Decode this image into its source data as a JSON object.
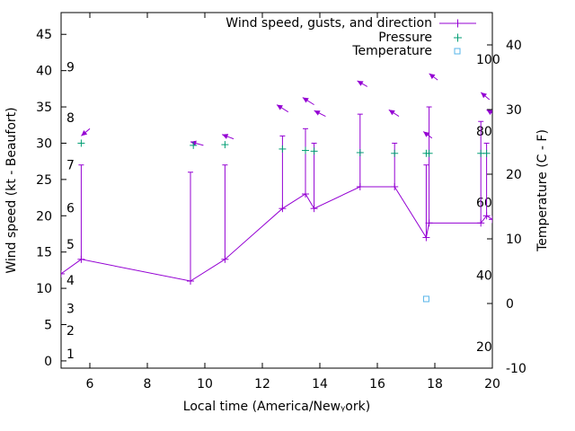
{
  "chart_data": {
    "type": "line",
    "xlabel": "Local time (America/Newᵧork)",
    "ylabel_left": "Wind speed (kt - Beaufort)",
    "ylabel_right": "Temperature (C - F)",
    "xlim": [
      5,
      20
    ],
    "ylim_left": [
      -1,
      48
    ],
    "ylim_right": [
      -10,
      45
    ],
    "x_ticks": [
      6,
      8,
      10,
      12,
      14,
      16,
      18,
      20
    ],
    "y_left_ticks": [
      0,
      5,
      10,
      15,
      20,
      25,
      30,
      35,
      40,
      45
    ],
    "y_right_ticks": [
      -10,
      0,
      10,
      20,
      30,
      40
    ],
    "beaufort_labels": [
      {
        "label": "1",
        "value": 1.0
      },
      {
        "label": "2",
        "value": 4.2
      },
      {
        "label": "3",
        "value": 7.2
      },
      {
        "label": "4",
        "value": 11.1
      },
      {
        "label": "5",
        "value": 16.1
      },
      {
        "label": "6",
        "value": 21.1
      },
      {
        "label": "7",
        "value": 27.0
      },
      {
        "label": "8",
        "value": 33.5
      },
      {
        "label": "9",
        "value": 40.5
      }
    ],
    "fahrenheit_labels": [
      {
        "label": "20",
        "celsius": -6.7
      },
      {
        "label": "40",
        "celsius": 4.4
      },
      {
        "label": "60",
        "celsius": 15.6
      },
      {
        "label": "80",
        "celsius": 26.7
      },
      {
        "label": "100",
        "celsius": 37.8
      }
    ],
    "legend": [
      {
        "label": "Wind speed, gusts, and direction",
        "color": "#9400d3"
      },
      {
        "label": "Pressure",
        "color": "#009e73"
      },
      {
        "label": "Temperature",
        "color": "#56b4e9"
      }
    ],
    "wind": {
      "color": "#9400d3",
      "x": [
        5.0,
        5.7,
        9.5,
        10.7,
        12.7,
        13.5,
        13.8,
        15.4,
        16.6,
        17.7,
        17.8,
        19.6,
        19.8,
        20.0
      ],
      "speed": [
        12.0,
        14.0,
        11.0,
        14.0,
        21.0,
        23.0,
        21.0,
        24.0,
        24.0,
        17.0,
        19.0,
        19.0,
        20.0,
        19.5
      ],
      "gust": [
        null,
        27.0,
        26.0,
        27.0,
        31.0,
        32.0,
        30.0,
        34.0,
        30.0,
        27.0,
        35.0,
        33.0,
        30.0,
        null
      ]
    },
    "wind_direction_arrows": [
      {
        "x": 5.7,
        "y": 31.0,
        "dx": 0.3,
        "dy": 1.0
      },
      {
        "x": 9.5,
        "y": 30.2,
        "dx": 0.45,
        "dy": -0.5
      },
      {
        "x": 10.6,
        "y": 31.2,
        "dx": 0.4,
        "dy": -0.6
      },
      {
        "x": 12.5,
        "y": 35.3,
        "dx": 0.4,
        "dy": -1.0
      },
      {
        "x": 13.4,
        "y": 36.3,
        "dx": 0.4,
        "dy": -1.0
      },
      {
        "x": 13.8,
        "y": 34.5,
        "dx": 0.4,
        "dy": -0.8
      },
      {
        "x": 15.3,
        "y": 38.6,
        "dx": 0.35,
        "dy": -0.8
      },
      {
        "x": 16.4,
        "y": 34.6,
        "dx": 0.35,
        "dy": -0.9
      },
      {
        "x": 17.6,
        "y": 31.6,
        "dx": 0.3,
        "dy": -0.9
      },
      {
        "x": 17.8,
        "y": 39.6,
        "dx": 0.3,
        "dy": -0.9
      },
      {
        "x": 19.6,
        "y": 37.0,
        "dx": 0.3,
        "dy": -1.0
      },
      {
        "x": 19.8,
        "y": 34.6,
        "dx": 0.35,
        "dy": -0.8
      }
    ],
    "pressure": {
      "color": "#009e73",
      "x": [
        5.7,
        9.6,
        10.7,
        12.7,
        13.5,
        13.8,
        15.4,
        16.6,
        17.7,
        17.8,
        19.6,
        19.8
      ],
      "y": [
        30.0,
        29.7,
        29.8,
        29.2,
        29.0,
        28.9,
        28.7,
        28.6,
        28.6,
        28.6,
        28.6,
        28.6
      ]
    },
    "temperature": {
      "color": "#56b4e9",
      "x": [
        17.7
      ],
      "y": [
        0.7
      ]
    }
  }
}
